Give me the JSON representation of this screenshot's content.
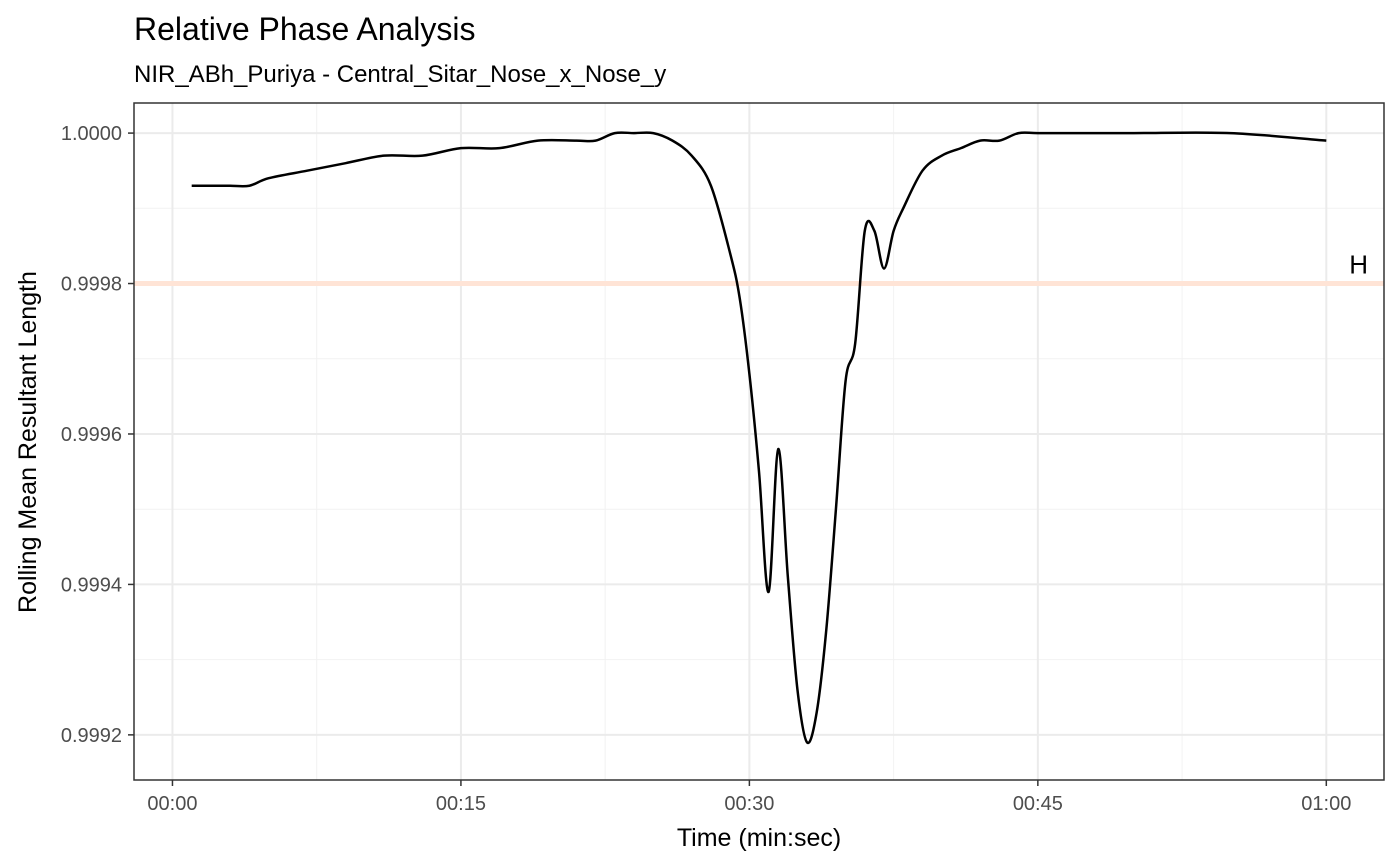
{
  "chart_data": {
    "type": "line",
    "title": "Relative Phase Analysis",
    "subtitle": "NIR_ABh_Puriya - Central_Sitar_Nose_x_Nose_y",
    "xlabel": "Time (min:sec)",
    "ylabel": "Rolling Mean Resultant Length",
    "x_unit": "seconds",
    "xlim": [
      -2,
      63
    ],
    "ylim": [
      0.99914,
      1.00004
    ],
    "x_ticks": [
      0,
      15,
      30,
      45,
      60
    ],
    "x_tick_labels": [
      "00:00",
      "00:15",
      "00:30",
      "00:45",
      "01:00"
    ],
    "y_ticks": [
      0.9992,
      0.9994,
      0.9996,
      0.9998,
      1.0
    ],
    "y_tick_labels": [
      "0.9992",
      "0.9994",
      "0.9996",
      "0.9998",
      "1.0000"
    ],
    "grid": true,
    "reference_line": {
      "y": 0.9998,
      "label": "H",
      "color": "#FFE4D6"
    },
    "series": [
      {
        "color": "#000000",
        "x": [
          1,
          2,
          3,
          4,
          5,
          7,
          9,
          11,
          13,
          15,
          17,
          19,
          21,
          22,
          23,
          24,
          25,
          26,
          27,
          28,
          29,
          29.5,
          30,
          30.5,
          31,
          31.5,
          32,
          32.5,
          33,
          33.5,
          34,
          34.5,
          35,
          35.5,
          36,
          36.5,
          37,
          37.5,
          38,
          39,
          40,
          41,
          42,
          43,
          44,
          45,
          47,
          50,
          55,
          60
        ],
        "values": [
          0.99993,
          0.99993,
          0.99993,
          0.99993,
          0.99994,
          0.99995,
          0.99996,
          0.99997,
          0.99997,
          0.99998,
          0.99998,
          0.99999,
          0.99999,
          0.99999,
          1.0,
          1.0,
          1.0,
          0.99999,
          0.99997,
          0.99993,
          0.99984,
          0.99978,
          0.99968,
          0.99955,
          0.99939,
          0.99958,
          0.99941,
          0.99926,
          0.99919,
          0.99923,
          0.99934,
          0.9995,
          0.99967,
          0.99972,
          0.99987,
          0.99987,
          0.99982,
          0.99987,
          0.9999,
          0.99995,
          0.99997,
          0.99998,
          0.99999,
          0.99999,
          1.0,
          1.0,
          1.0,
          1.0,
          1.0,
          0.99999
        ]
      }
    ]
  }
}
